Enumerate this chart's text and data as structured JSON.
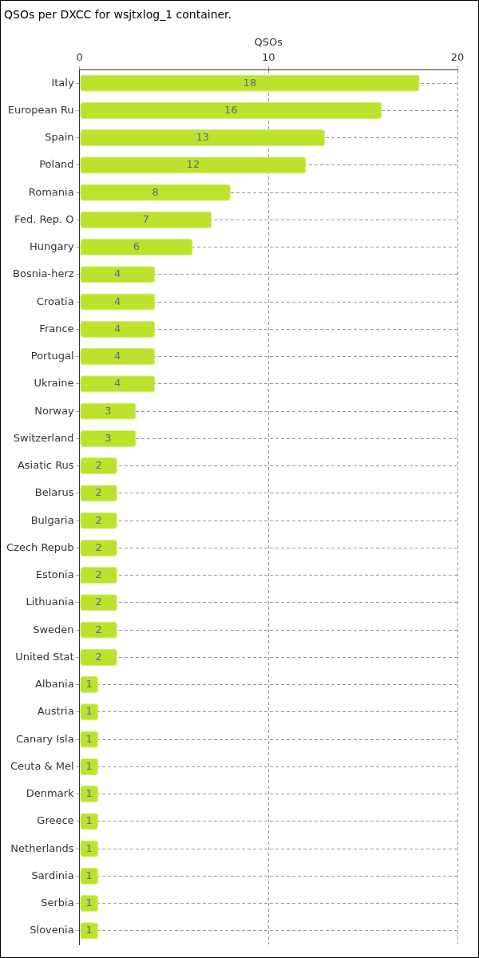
{
  "chart_data": {
    "type": "bar",
    "orientation": "horizontal",
    "title": "QSOs per DXCC for wsjtxlog_1 container.",
    "xlabel": "QSOs",
    "categories": [
      "Italy",
      "European Ru",
      "Spain",
      "Poland",
      "Romania",
      "Fed. Rep. O",
      "Hungary",
      "Bosnia-herz",
      "Croatia",
      "France",
      "Portugal",
      "Ukraine",
      "Norway",
      "Switzerland",
      "Asiatic Rus",
      "Belarus",
      "Bulgaria",
      "Czech Repub",
      "Estonia",
      "Lithuania",
      "Sweden",
      "United Stat",
      "Albania",
      "Austria",
      "Canary Isla",
      "Ceuta & Mel",
      "Denmark",
      "Greece",
      "Netherlands",
      "Sardinia",
      "Serbia",
      "Slovenia"
    ],
    "values": [
      18,
      16,
      13,
      12,
      8,
      7,
      6,
      4,
      4,
      4,
      4,
      4,
      3,
      3,
      2,
      2,
      2,
      2,
      2,
      2,
      2,
      2,
      1,
      1,
      1,
      1,
      1,
      1,
      1,
      1,
      1,
      1
    ],
    "color": "#bde22d",
    "xlim": [
      0,
      20
    ],
    "xticks": [
      0,
      10,
      20
    ],
    "grid": true,
    "line_style": "dashed",
    "data_labels": true
  }
}
